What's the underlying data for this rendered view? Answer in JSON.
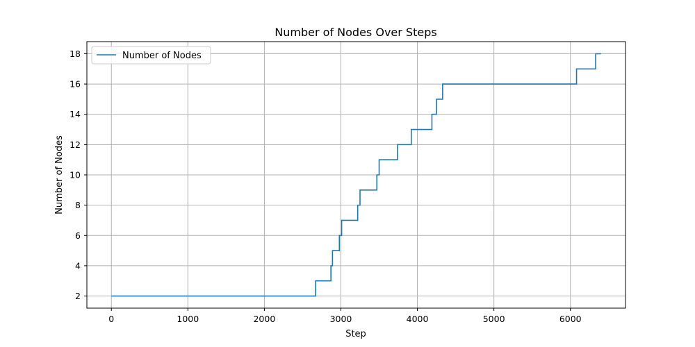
{
  "chart_data": {
    "type": "line",
    "title": "Number of Nodes Over Steps",
    "xlabel": "Step",
    "ylabel": "Number of Nodes",
    "xlim": [
      -320,
      6720
    ],
    "ylim": [
      1.2,
      18.8
    ],
    "xticks": [
      0,
      1000,
      2000,
      3000,
      4000,
      5000,
      6000
    ],
    "yticks": [
      2,
      4,
      6,
      8,
      10,
      12,
      14,
      16,
      18
    ],
    "grid": true,
    "legend_position": "top-left",
    "series": [
      {
        "name": "Number of Nodes",
        "color": "#1f77b4",
        "step": true,
        "x": [
          0,
          2670,
          2870,
          2890,
          2980,
          3010,
          3220,
          3250,
          3470,
          3500,
          3740,
          3920,
          4190,
          4250,
          4330,
          6080,
          6330,
          6400
        ],
        "y": [
          2,
          3,
          4,
          5,
          6,
          7,
          8,
          9,
          10,
          11,
          12,
          13,
          14,
          15,
          16,
          17,
          18,
          18
        ]
      }
    ]
  }
}
